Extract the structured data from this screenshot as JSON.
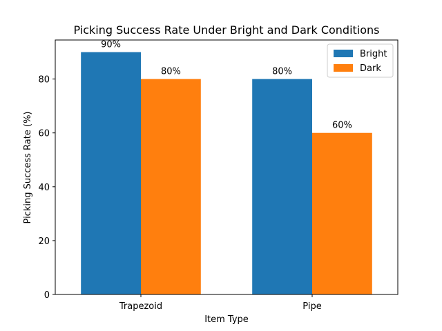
{
  "chart_data": {
    "type": "bar",
    "title": "Picking Success Rate Under Bright and Dark Conditions",
    "xlabel": "Item Type",
    "ylabel": "Picking Success Rate (%)",
    "categories": [
      "Trapezoid",
      "Pipe"
    ],
    "series": [
      {
        "name": "Bright",
        "values": [
          90,
          80
        ],
        "labels": [
          "90%",
          "80%"
        ],
        "color": "#1f77b4"
      },
      {
        "name": "Dark",
        "values": [
          80,
          60
        ],
        "labels": [
          "80%",
          "60%"
        ],
        "color": "#ff7f0e"
      }
    ],
    "ylim": [
      0,
      94.5
    ],
    "yticks": [
      0,
      20,
      40,
      60,
      80
    ],
    "legend_position": "top-right",
    "grid": false
  }
}
